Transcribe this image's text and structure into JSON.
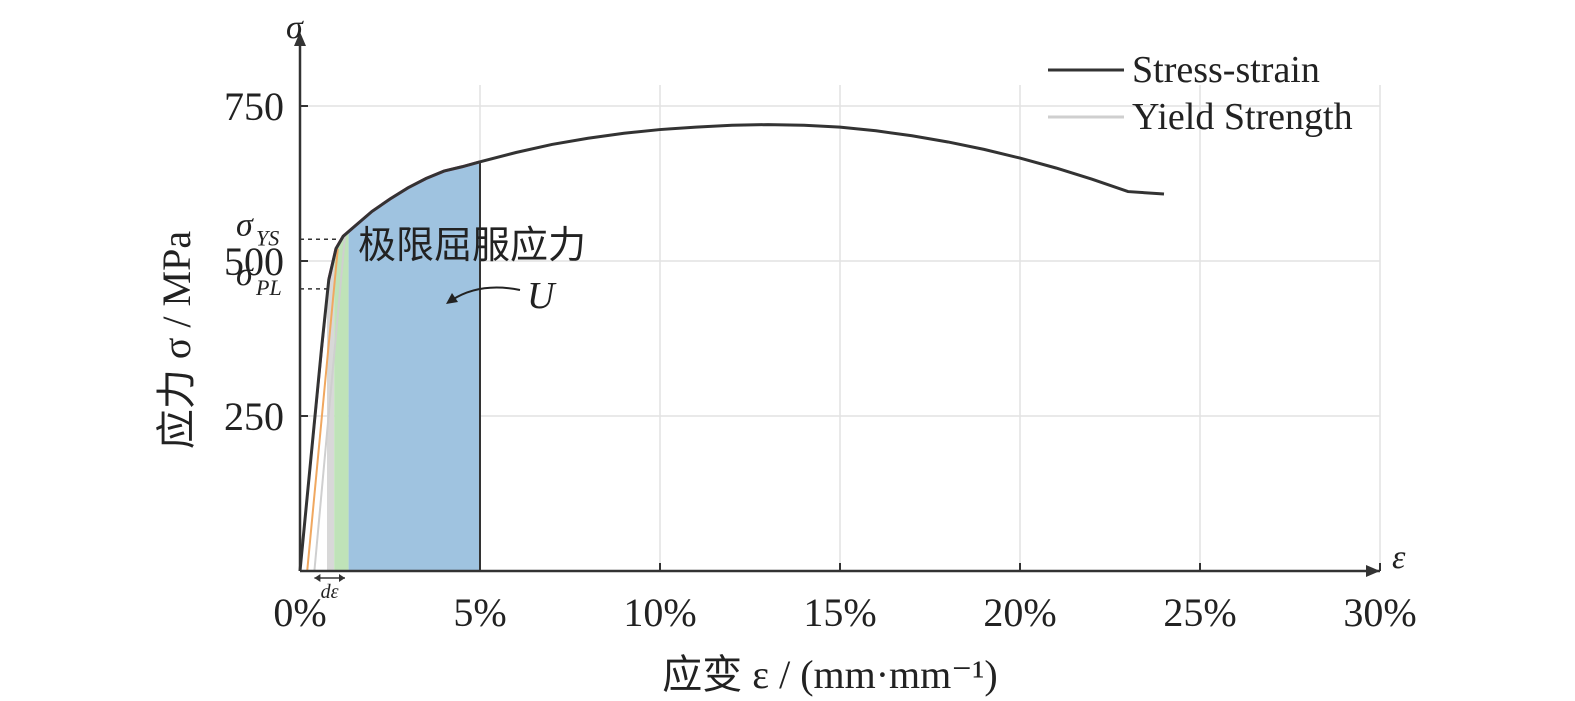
{
  "chart_data": {
    "type": "line",
    "xlabel": "应变 ε / (mm·mm⁻¹)",
    "ylabel": "应力 σ / MPa",
    "x_axis_symbol": "ε",
    "y_axis_symbol": "σ",
    "xlim": [
      0,
      0.3
    ],
    "ylim": [
      0,
      800
    ],
    "x_ticks": [
      {
        "value": 0.0,
        "label": "0%"
      },
      {
        "value": 0.05,
        "label": "5%"
      },
      {
        "value": 0.1,
        "label": "10%"
      },
      {
        "value": 0.15,
        "label": "15%"
      },
      {
        "value": 0.2,
        "label": "20%"
      },
      {
        "value": 0.25,
        "label": "25%"
      },
      {
        "value": 0.3,
        "label": "30%"
      }
    ],
    "y_ticks": [
      {
        "value": 250,
        "label": "250"
      },
      {
        "value": 500,
        "label": "500"
      },
      {
        "value": 750,
        "label": "750"
      }
    ],
    "grid": true,
    "legend": {
      "placement": "top-right",
      "entries": [
        {
          "label": "Stress-strain",
          "color": "#333333"
        },
        {
          "label": "Yield Strength",
          "color": "#cfcfcf"
        }
      ]
    },
    "series": [
      {
        "name": "Stress-strain",
        "color": "#333333",
        "x": [
          0.0,
          0.003,
          0.006,
          0.008,
          0.01,
          0.012,
          0.015,
          0.02,
          0.025,
          0.03,
          0.035,
          0.04,
          0.045,
          0.05,
          0.06,
          0.07,
          0.08,
          0.09,
          0.1,
          0.11,
          0.12,
          0.13,
          0.14,
          0.15,
          0.16,
          0.17,
          0.18,
          0.19,
          0.2,
          0.21,
          0.22,
          0.23,
          0.24
        ],
        "y": [
          0,
          180,
          360,
          470,
          520,
          540,
          555,
          580,
          600,
          618,
          633,
          645,
          652,
          660,
          675,
          688,
          698,
          706,
          712,
          716,
          719,
          720,
          719,
          716,
          710,
          702,
          692,
          680,
          666,
          650,
          632,
          612,
          608
        ]
      }
    ],
    "annotations": {
      "sigma_ys": {
        "sym": "σ",
        "sub": "YS",
        "value": 535
      },
      "sigma_pl": {
        "sym": "σ",
        "sub": "PL",
        "value": 455
      },
      "region_label": "极限屈服应力",
      "energy_label": "U",
      "d_epsilon": "dε"
    },
    "colors": {
      "area_blue": "#9fc3e0",
      "area_green": "#bfe3b8",
      "area_gray": "#d8d8d8",
      "elastic_orange": "#f0a860",
      "elastic_pink": "#e05aa0",
      "grid": "#e2e2e2"
    }
  }
}
